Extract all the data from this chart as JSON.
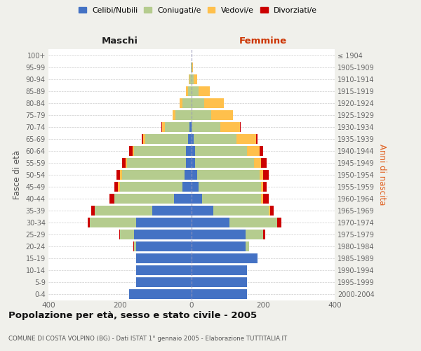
{
  "age_groups_bottom_to_top": [
    "0-4",
    "5-9",
    "10-14",
    "15-19",
    "20-24",
    "25-29",
    "30-34",
    "35-39",
    "40-44",
    "45-49",
    "50-54",
    "55-59",
    "60-64",
    "65-69",
    "70-74",
    "75-79",
    "80-84",
    "85-89",
    "90-94",
    "95-99",
    "100+"
  ],
  "birth_years_bottom_to_top": [
    "2000-2004",
    "1995-1999",
    "1990-1994",
    "1985-1989",
    "1980-1984",
    "1975-1979",
    "1970-1974",
    "1965-1969",
    "1960-1964",
    "1955-1959",
    "1950-1954",
    "1945-1949",
    "1940-1944",
    "1935-1939",
    "1930-1934",
    "1925-1929",
    "1920-1924",
    "1915-1919",
    "1910-1914",
    "1905-1909",
    "≤ 1904"
  ],
  "male_celibe": [
    175,
    155,
    155,
    155,
    155,
    160,
    155,
    110,
    50,
    25,
    20,
    15,
    15,
    10,
    5,
    0,
    0,
    0,
    0,
    0,
    0
  ],
  "male_coniugato": [
    0,
    0,
    0,
    0,
    5,
    40,
    130,
    160,
    165,
    175,
    175,
    165,
    145,
    120,
    70,
    45,
    25,
    10,
    5,
    2,
    0
  ],
  "male_vedovo": [
    0,
    0,
    0,
    0,
    0,
    0,
    0,
    0,
    0,
    5,
    5,
    5,
    5,
    5,
    8,
    8,
    8,
    5,
    2,
    0,
    0
  ],
  "male_divorziato": [
    0,
    0,
    0,
    0,
    2,
    2,
    5,
    10,
    15,
    10,
    10,
    10,
    10,
    5,
    2,
    0,
    0,
    0,
    0,
    0,
    0
  ],
  "female_nubile": [
    155,
    155,
    155,
    185,
    150,
    150,
    105,
    60,
    30,
    20,
    15,
    10,
    10,
    5,
    0,
    0,
    0,
    0,
    0,
    0,
    0
  ],
  "female_coniugata": [
    0,
    0,
    0,
    0,
    10,
    50,
    135,
    155,
    165,
    175,
    175,
    165,
    145,
    120,
    80,
    55,
    35,
    20,
    5,
    2,
    0
  ],
  "female_vedova": [
    0,
    0,
    0,
    0,
    0,
    0,
    0,
    5,
    5,
    5,
    10,
    20,
    35,
    55,
    55,
    60,
    55,
    30,
    10,
    2,
    0
  ],
  "female_divorziata": [
    0,
    0,
    0,
    0,
    0,
    5,
    10,
    10,
    15,
    10,
    15,
    15,
    10,
    5,
    2,
    0,
    0,
    0,
    0,
    0,
    0
  ],
  "color_celibe": "#4472c4",
  "color_coniugato": "#b5cc8e",
  "color_vedovo": "#ffc04c",
  "color_divorziato": "#cc0000",
  "legend_labels": [
    "Celibi/Nubili",
    "Coniugati/e",
    "Vedovi/e",
    "Divorziati/e"
  ],
  "title": "Popolazione per età, sesso e stato civile - 2005",
  "subtitle": "COMUNE DI COSTA VOLPINO (BG) - Dati ISTAT 1° gennaio 2005 - Elaborazione TUTTITALIA.IT",
  "ylabel_left": "Fasce di età",
  "ylabel_right": "Anni di nascita",
  "label_maschi": "Maschi",
  "label_femmine": "Femmine",
  "xlim": 400,
  "bg_color": "#f0f0eb",
  "plot_bg": "#ffffff"
}
